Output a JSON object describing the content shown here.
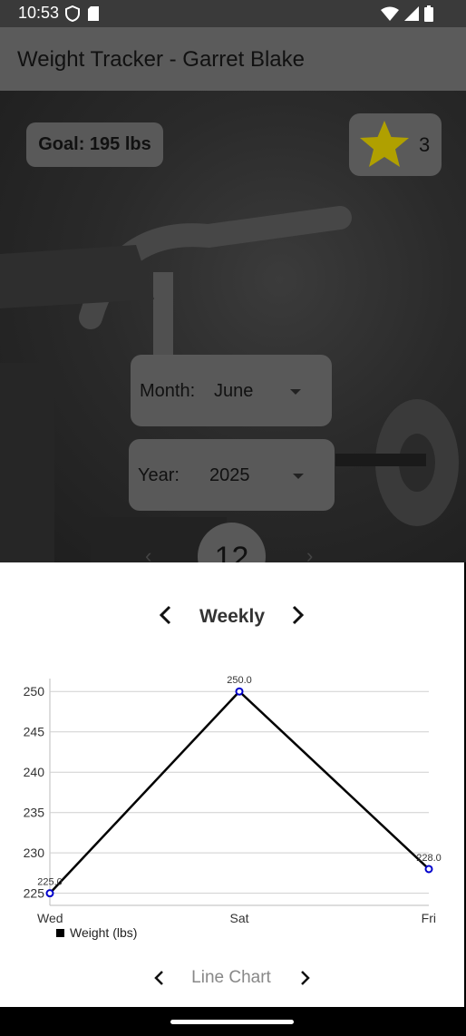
{
  "status_bar": {
    "time": "10:53"
  },
  "app_bar": {
    "title": "Weight Tracker - Garret Blake"
  },
  "goal": {
    "label": "Goal: 195 lbs"
  },
  "streak": {
    "count": "3",
    "star_color": "#b0a000"
  },
  "month": {
    "label": "Month:",
    "value": "June"
  },
  "year": {
    "label": "Year:",
    "value": "2025"
  },
  "day": {
    "value": "12"
  },
  "period": {
    "label": "Weekly"
  },
  "chart_type": {
    "label": "Line Chart"
  },
  "chart_data": {
    "type": "line",
    "categories": [
      "Wed",
      "Sat",
      "Fri"
    ],
    "series": [
      {
        "name": "Weight (lbs)",
        "values": [
          225.0,
          250.0,
          228.0
        ],
        "color": "#000000",
        "point_color": "#0000cc"
      }
    ],
    "data_labels": [
      "225.0",
      "250.0",
      "228.0"
    ],
    "y_ticks": [
      "225",
      "230",
      "235",
      "240",
      "245",
      "250"
    ],
    "ylim": [
      223.5,
      252.5
    ],
    "grid": true,
    "legend": "bottom-left"
  }
}
